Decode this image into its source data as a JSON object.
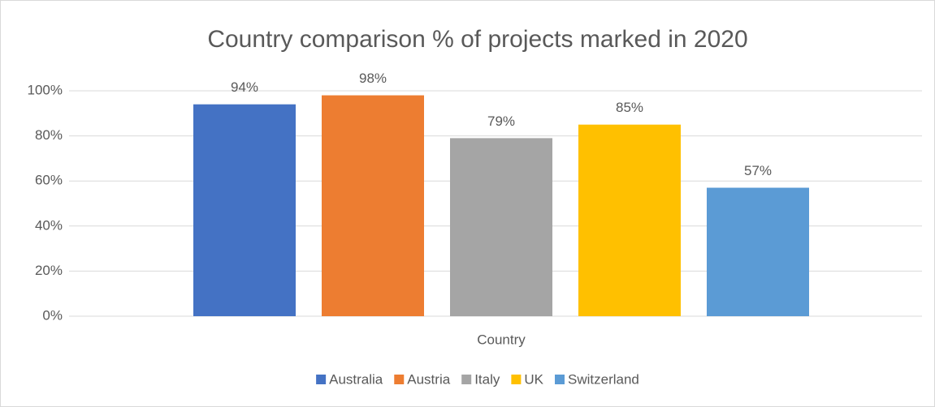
{
  "chart_data": {
    "type": "bar",
    "title": "Country comparison % of projects marked in 2020",
    "x_label": "Country",
    "categories": [
      "Country"
    ],
    "series": [
      {
        "name": "Australia",
        "color": "#4472c4",
        "values": [
          94
        ],
        "value_labels": [
          "94%"
        ]
      },
      {
        "name": "Austria",
        "color": "#ed7d31",
        "values": [
          98
        ],
        "value_labels": [
          "98%"
        ]
      },
      {
        "name": "Italy",
        "color": "#a5a5a5",
        "values": [
          79
        ],
        "value_labels": [
          "79%"
        ]
      },
      {
        "name": "UK",
        "color": "#ffc000",
        "values": [
          85
        ],
        "value_labels": [
          "85%"
        ]
      },
      {
        "name": "Switzerland",
        "color": "#5b9bd5",
        "values": [
          57
        ],
        "value_labels": [
          "57%"
        ]
      }
    ],
    "ylim": [
      0,
      100
    ],
    "yticks": [
      {
        "value": 0,
        "label": "0%"
      },
      {
        "value": 20,
        "label": "20%"
      },
      {
        "value": 40,
        "label": "40%"
      },
      {
        "value": 60,
        "label": "60%"
      },
      {
        "value": 80,
        "label": "80%"
      },
      {
        "value": 100,
        "label": "100%"
      }
    ],
    "grid": true,
    "legend": "bottom"
  }
}
